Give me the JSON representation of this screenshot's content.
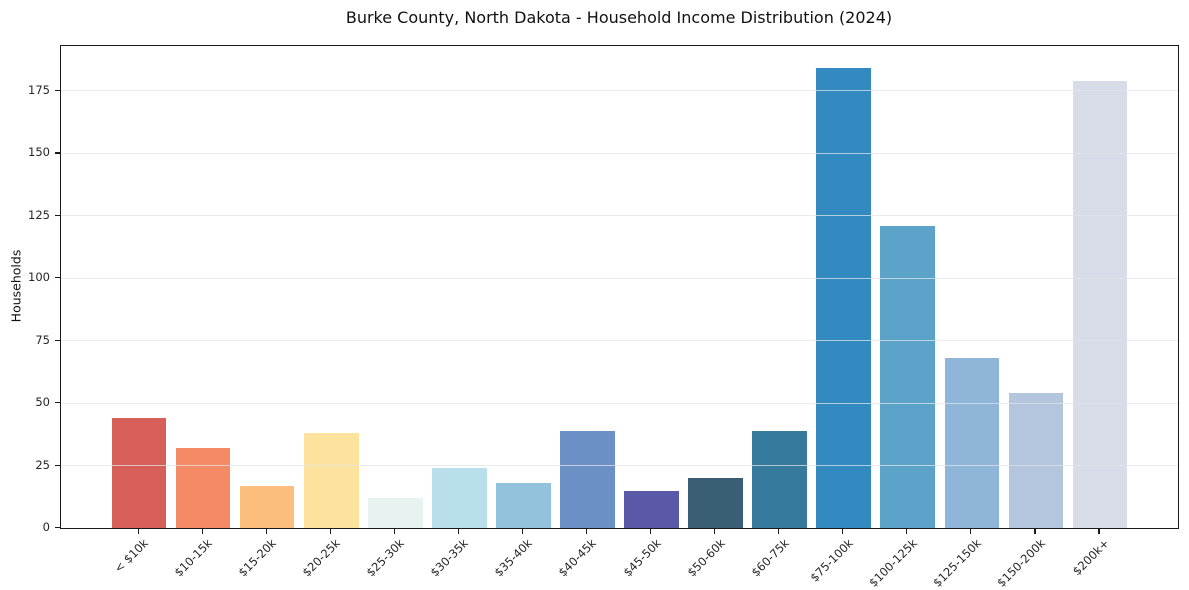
{
  "chart_data": {
    "type": "bar",
    "title": "Burke County, North Dakota - Household Income Distribution (2024)",
    "xlabel": "",
    "ylabel": "Households",
    "categories": [
      "< $10k",
      "$10-15k",
      "$15-20k",
      "$20-25k",
      "$25-30k",
      "$30-35k",
      "$35-40k",
      "$40-45k",
      "$45-50k",
      "$50-60k",
      "$60-75k",
      "$75-100k",
      "$100-125k",
      "$125-150k",
      "$150-200k",
      "$200k+"
    ],
    "values": [
      44,
      32,
      17,
      38,
      12,
      24,
      18,
      39,
      15,
      20,
      39,
      184,
      121,
      68,
      54,
      179
    ],
    "bar_colors": [
      "#d65f57",
      "#f58a66",
      "#fcbe7d",
      "#fde29e",
      "#e7f3f1",
      "#b9dfec",
      "#93c2dd",
      "#6b90c5",
      "#5a59a8",
      "#3a5f75",
      "#35799d",
      "#338ac0",
      "#5ba3c9",
      "#8fb5d8",
      "#b4c6de",
      "#d8dbe8"
    ],
    "yticks": [
      0,
      25,
      50,
      75,
      100,
      125,
      150,
      175
    ],
    "ylim": [
      0,
      193
    ],
    "xlim": [
      -1.22,
      16.22
    ],
    "bar_width": 0.85,
    "grid": "horizontal",
    "legend": "none",
    "axis_color": "#1a1a1a",
    "tick_label_color": "#262626"
  }
}
